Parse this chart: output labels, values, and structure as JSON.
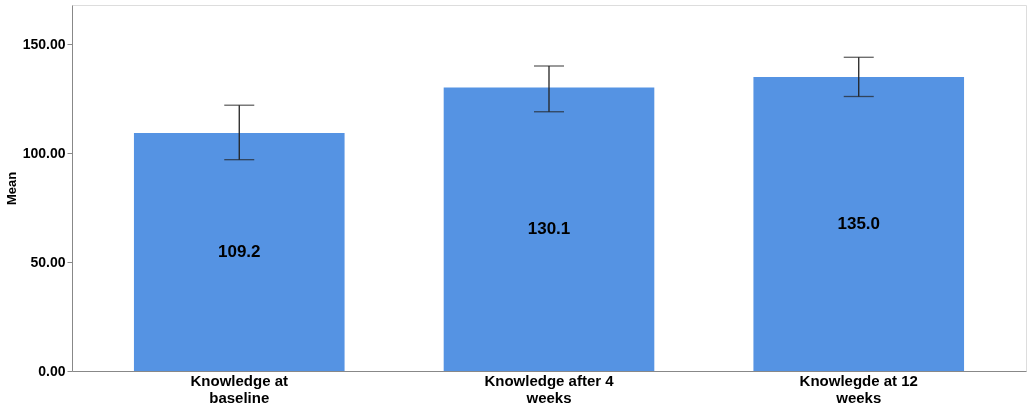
{
  "chart_data": {
    "type": "bar",
    "ylabel": "Mean",
    "categories": [
      "Knowledge at baseline",
      "Knowledge after 4 weeks",
      "Knowlegde at 12 weeks"
    ],
    "values": [
      109.2,
      130.1,
      135.0
    ],
    "errors": [
      [
        97,
        122
      ],
      [
        119,
        140
      ],
      [
        126,
        144
      ]
    ],
    "color": "#5593e3",
    "ylim": [
      0,
      168
    ],
    "yticks": [
      {
        "value": 0,
        "label": "0.00"
      },
      {
        "value": 50,
        "label": "50.00"
      },
      {
        "value": 100,
        "label": "100.00"
      },
      {
        "value": 150,
        "label": "150.00"
      }
    ],
    "value_labels": [
      "109.2",
      "130.1",
      "135.0"
    ],
    "grid": false
  }
}
